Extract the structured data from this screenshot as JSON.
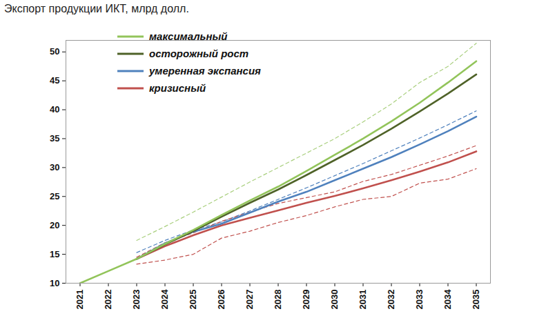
{
  "chart_data": {
    "type": "line",
    "title": "Экспорт продукции ИКТ, млрд долл.",
    "x": [
      2021,
      2022,
      2023,
      2024,
      2025,
      2026,
      2027,
      2028,
      2029,
      2030,
      2031,
      2032,
      2033,
      2034,
      2035
    ],
    "xlim": [
      2020.5,
      2035.5
    ],
    "xticks": [
      2021,
      2022,
      2023,
      2024,
      2025,
      2026,
      2027,
      2028,
      2029,
      2030,
      2031,
      2032,
      2033,
      2034,
      2035
    ],
    "ylim": [
      10,
      52
    ],
    "yticks": [
      10,
      15,
      20,
      25,
      30,
      35,
      40,
      45,
      50
    ],
    "grid": false,
    "legend": "top-left",
    "series": [
      {
        "color": "#a9cf7e",
        "line_style": "dashed",
        "values": [
          null,
          null,
          17.4,
          19.8,
          22.3,
          24.9,
          27.5,
          30.0,
          32.5,
          35.0,
          37.9,
          41.0,
          44.7,
          47.5,
          51.5
        ]
      },
      {
        "color": "#4f81bd",
        "line_style": "dashed",
        "values": [
          null,
          null,
          15.3,
          17.4,
          19.2,
          20.6,
          22.5,
          24.5,
          26.5,
          28.6,
          30.7,
          32.9,
          35.1,
          37.4,
          39.8
        ]
      },
      {
        "color": "#c0504d",
        "line_style": "dashed",
        "values": [
          null,
          null,
          14.5,
          17.0,
          18.7,
          20.7,
          22.3,
          23.8,
          24.8,
          25.8,
          27.6,
          28.8,
          30.4,
          32.0,
          33.8
        ]
      },
      {
        "color": "#c0504d",
        "line_style": "dashed",
        "values": [
          null,
          null,
          13.3,
          14.0,
          15.0,
          17.8,
          19.0,
          20.5,
          21.7,
          23.2,
          24.5,
          25.0,
          27.3,
          28.0,
          29.8
        ]
      },
      {
        "name": "кризисный",
        "color": "#c0504d",
        "line_style": "solid",
        "values": [
          null,
          null,
          14.2,
          16.4,
          18.3,
          20.0,
          21.3,
          22.6,
          23.9,
          25.1,
          26.4,
          27.8,
          29.3,
          30.9,
          32.8
        ]
      },
      {
        "name": "умеренная экспансия",
        "color": "#4f81bd",
        "line_style": "solid",
        "values": [
          null,
          null,
          14.2,
          16.9,
          18.9,
          20.3,
          22.2,
          24.1,
          25.8,
          27.8,
          29.8,
          31.8,
          34.0,
          36.3,
          38.8
        ]
      },
      {
        "name": "осторожный рост",
        "color": "#4f6228",
        "line_style": "solid",
        "values": [
          null,
          null,
          14.2,
          16.7,
          19.0,
          21.5,
          23.9,
          26.2,
          28.7,
          31.3,
          33.9,
          36.7,
          39.7,
          42.8,
          46.1
        ]
      },
      {
        "name": "максимальный",
        "color": "#92c45a",
        "line_style": "solid",
        "values": [
          10.0,
          12.1,
          14.2,
          16.8,
          19.2,
          21.8,
          24.3,
          26.7,
          29.4,
          32.2,
          35.0,
          38.0,
          41.2,
          44.7,
          48.4
        ]
      }
    ]
  }
}
